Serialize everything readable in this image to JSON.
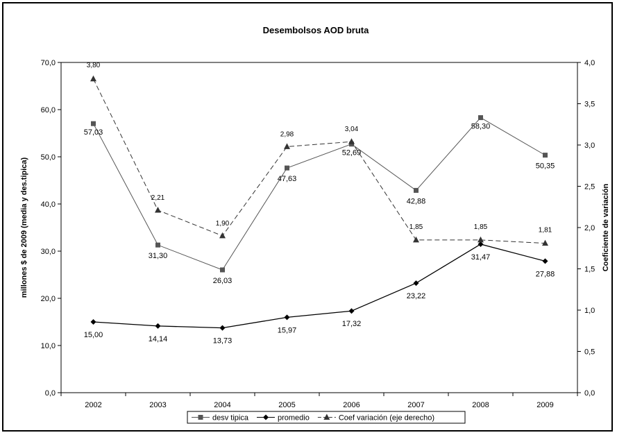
{
  "chart_data": {
    "type": "line",
    "title": "Desembolsos AOD bruta",
    "ylabel": "millones $ de 2009 (media y des.tipica)",
    "y2label": "Coeficiente de variación",
    "categories": [
      "2002",
      "2003",
      "2004",
      "2005",
      "2006",
      "2007",
      "2008",
      "2009"
    ],
    "ylim": [
      0,
      70
    ],
    "y2lim": [
      0,
      4
    ],
    "yticks": [
      "0,0",
      "10,0",
      "20,0",
      "30,0",
      "40,0",
      "50,0",
      "60,0",
      "70,0"
    ],
    "y2ticks": [
      "0,0",
      "0,5",
      "1,0",
      "1,5",
      "2,0",
      "2,5",
      "3,0",
      "3,5",
      "4,0"
    ],
    "legend_position": "bottom",
    "series": [
      {
        "name": "desv tipica",
        "axis": "left",
        "marker": "square",
        "dash": "solid",
        "values": [
          57.03,
          31.3,
          26.03,
          47.63,
          52.69,
          42.88,
          58.3,
          50.35
        ],
        "labels": [
          "57,03",
          "31,30",
          "26,03",
          "47,63",
          "52,69",
          "42,88",
          "58,30",
          "50,35"
        ]
      },
      {
        "name": "promedio",
        "axis": "left",
        "marker": "diamond",
        "dash": "solid",
        "values": [
          15.0,
          14.14,
          13.73,
          15.97,
          17.32,
          23.22,
          31.47,
          27.88
        ],
        "labels": [
          "15,00",
          "14,14",
          "13,73",
          "15,97",
          "17,32",
          "23,22",
          "31,47",
          "27,88"
        ]
      },
      {
        "name": "Coef variación (eje derecho)",
        "axis": "right",
        "marker": "triangle",
        "dash": "dashed",
        "values": [
          3.8,
          2.21,
          1.9,
          2.98,
          3.04,
          1.85,
          1.85,
          1.81
        ],
        "labels": [
          "3,80",
          "2,21",
          "1,90",
          "2,98",
          "3,04",
          "1,85",
          "1,85",
          "1,81"
        ]
      }
    ],
    "colors": {
      "desv_tipica": "#555555",
      "promedio": "#000000",
      "coef": "#333333"
    }
  }
}
